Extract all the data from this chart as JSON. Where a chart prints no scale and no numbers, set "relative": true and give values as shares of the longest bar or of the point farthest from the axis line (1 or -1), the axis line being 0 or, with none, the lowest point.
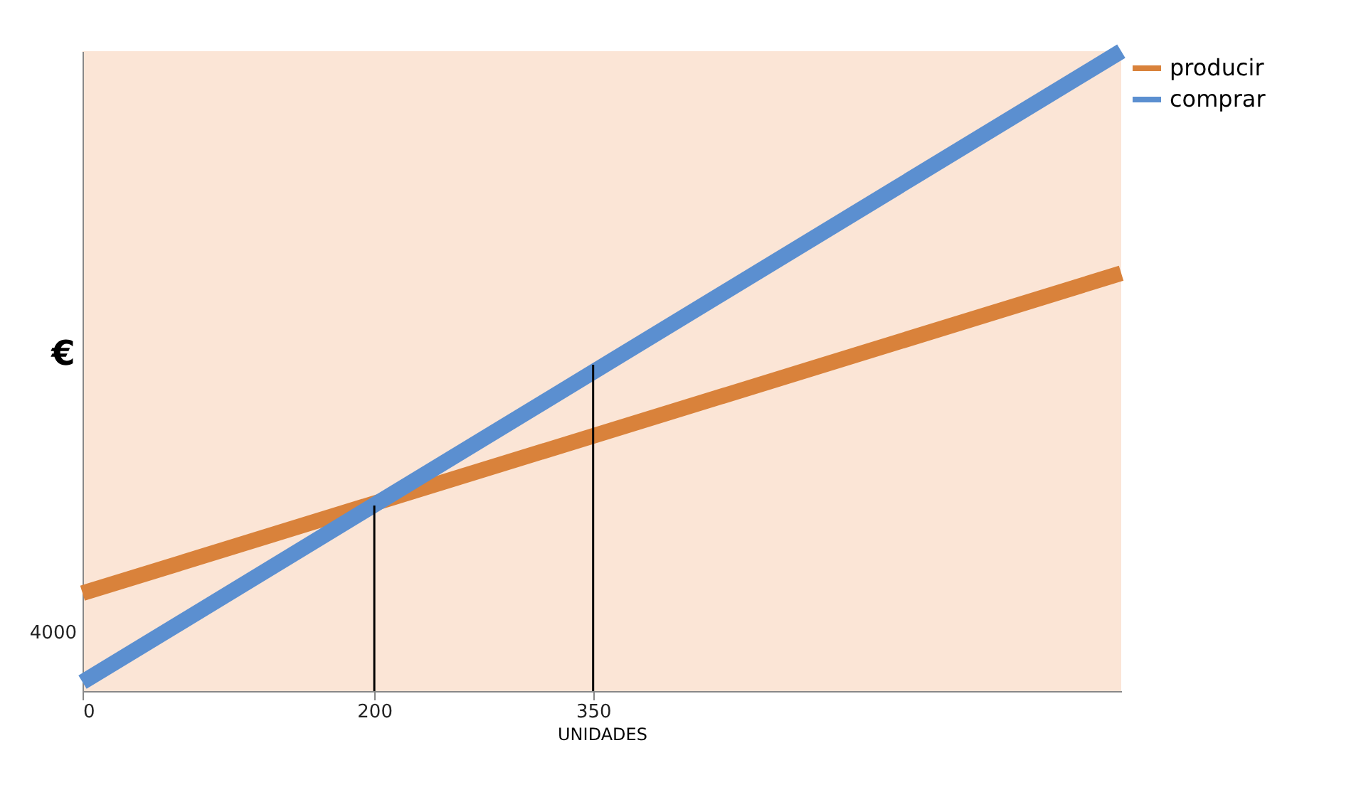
{
  "chart_data": {
    "type": "line",
    "xlabel": "UNIDADES",
    "ylabel": "€",
    "relative": true,
    "xlim": [
      0,
      712
    ],
    "xticks": [
      0,
      200,
      350
    ],
    "grid": false,
    "legend": "right",
    "line_style": "solid",
    "marker": "none",
    "annotations": [
      {
        "text": "4000",
        "x": 0,
        "y": 0.153
      }
    ],
    "series": [
      {
        "name": "producir",
        "color": "#d9823b",
        "x": [
          0,
          712
        ],
        "values": [
          0.153,
          0.653
        ]
      },
      {
        "name": "comprar",
        "color": "#5b8fd0",
        "x": [
          0,
          712
        ],
        "values": [
          0.014,
          1.0
        ]
      },
      {
        "color": "#000000",
        "x": [
          200,
          200
        ],
        "values": [
          0,
          0.29
        ]
      },
      {
        "color": "#000000",
        "x": [
          350,
          350
        ],
        "values": [
          0,
          0.51
        ]
      }
    ]
  }
}
